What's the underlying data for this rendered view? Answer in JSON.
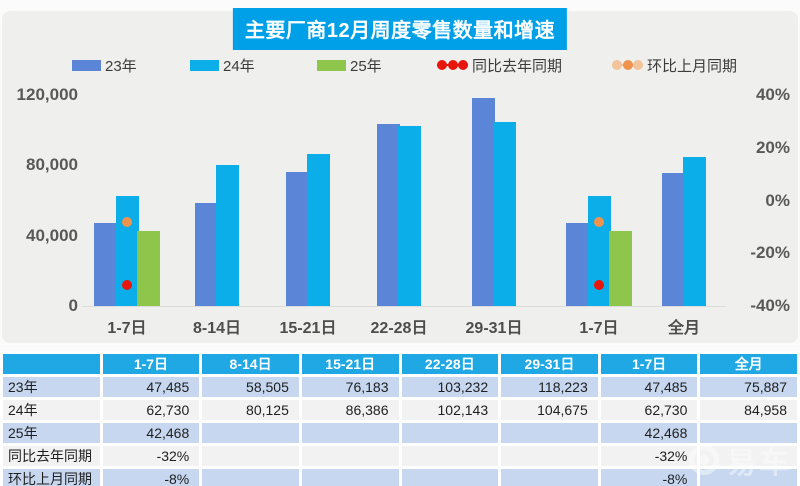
{
  "title": "主要厂商12月周度零售数量和增速",
  "legend": [
    {
      "label": "23年",
      "type": "bar",
      "color": "#5b86d8"
    },
    {
      "label": "24年",
      "type": "bar",
      "color": "#0caee9"
    },
    {
      "label": "25年",
      "type": "bar",
      "color": "#8dc64a"
    },
    {
      "label": "同比去年同期",
      "type": "dot",
      "color": "#e8150c",
      "edge_color": "#e8150c"
    },
    {
      "label": "环比上月同期",
      "type": "dot",
      "color": "#f0934c",
      "edge_color": "#f2c49a"
    }
  ],
  "chart_data": {
    "type": "bar",
    "title": "主要厂商12月周度零售数量和增速",
    "categories": [
      "1-7日",
      "8-14日",
      "15-21日",
      "22-28日",
      "29-31日",
      "1-7日",
      "全月"
    ],
    "series": [
      {
        "name": "23年",
        "type": "bar",
        "axis": "left",
        "color": "#5b86d8",
        "values": [
          47485,
          58505,
          76183,
          103232,
          118223,
          47485,
          75887
        ]
      },
      {
        "name": "24年",
        "type": "bar",
        "axis": "left",
        "color": "#0caee9",
        "values": [
          62730,
          80125,
          86386,
          102143,
          104675,
          62730,
          84958
        ]
      },
      {
        "name": "25年",
        "type": "bar",
        "axis": "left",
        "color": "#8dc64a",
        "values": [
          42468,
          null,
          null,
          null,
          null,
          42468,
          null
        ]
      },
      {
        "name": "同比去年同期",
        "type": "point",
        "axis": "right",
        "color": "#e8150c",
        "values": [
          -32,
          null,
          null,
          null,
          null,
          -32,
          null
        ]
      },
      {
        "name": "环比上月同期",
        "type": "point",
        "axis": "right",
        "color": "#f0934c",
        "values": [
          -8,
          null,
          null,
          null,
          null,
          -8,
          null
        ]
      }
    ],
    "left_axis": {
      "ticks": [
        "120,000",
        "80,000",
        "40,000",
        "0"
      ],
      "min": 0,
      "max": 120000
    },
    "right_axis": {
      "ticks": [
        "40%",
        "20%",
        "0%",
        "-20%",
        "-40%"
      ],
      "min": -40,
      "max": 40
    },
    "grid": false,
    "legend_position": "top"
  },
  "table": {
    "header": [
      "",
      "1-7日",
      "8-14日",
      "15-21日",
      "22-28日",
      "29-31日",
      "1-7日",
      "全月"
    ],
    "rows": [
      {
        "label": "23年",
        "values": [
          "47,485",
          "58,505",
          "76,183",
          "103,232",
          "118,223",
          "47,485",
          "75,887"
        ]
      },
      {
        "label": "24年",
        "values": [
          "62,730",
          "80,125",
          "86,386",
          "102,143",
          "104,675",
          "62,730",
          "84,958"
        ]
      },
      {
        "label": "25年",
        "values": [
          "42,468",
          "",
          "",
          "",
          "",
          "42,468",
          ""
        ]
      },
      {
        "label": "同比去年同期",
        "values": [
          "-32%",
          "",
          "",
          "",
          "",
          "-32%",
          ""
        ]
      },
      {
        "label": "环比上月同期",
        "values": [
          "-8%",
          "",
          "",
          "",
          "",
          "-8%",
          ""
        ]
      }
    ]
  },
  "watermark": {
    "text": "易车"
  },
  "colors": {
    "title_bg": "#00a0e9",
    "panel_bg": "#efefee",
    "table_header_bg": "#20a8e4",
    "row_blue": "#c6d7ef",
    "row_gray": "#f2f2f2",
    "bar_23": "#5b86d8",
    "bar_24": "#0caee9",
    "bar_25": "#8dc64a",
    "yoy_red": "#e8150c",
    "mom_orange": "#f0934c"
  }
}
